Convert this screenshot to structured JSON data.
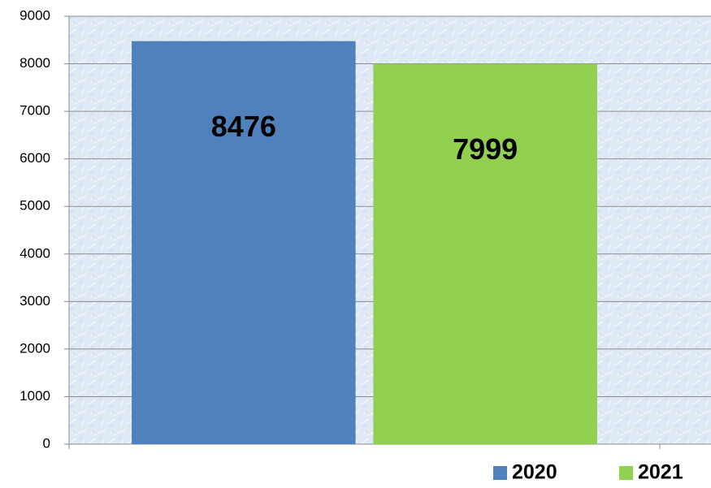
{
  "chart_data": {
    "type": "bar",
    "categories": [
      null
    ],
    "series": [
      {
        "name": "2020",
        "color": "#4f81bd",
        "values": [
          8476
        ]
      },
      {
        "name": "2021",
        "color": "#92d050",
        "values": [
          7999
        ]
      }
    ],
    "ylim": [
      0,
      9000
    ],
    "yticks": [
      0,
      1000,
      2000,
      3000,
      4000,
      5000,
      6000,
      7000,
      8000,
      9000
    ],
    "grid": true,
    "legend": "bottom-right"
  }
}
